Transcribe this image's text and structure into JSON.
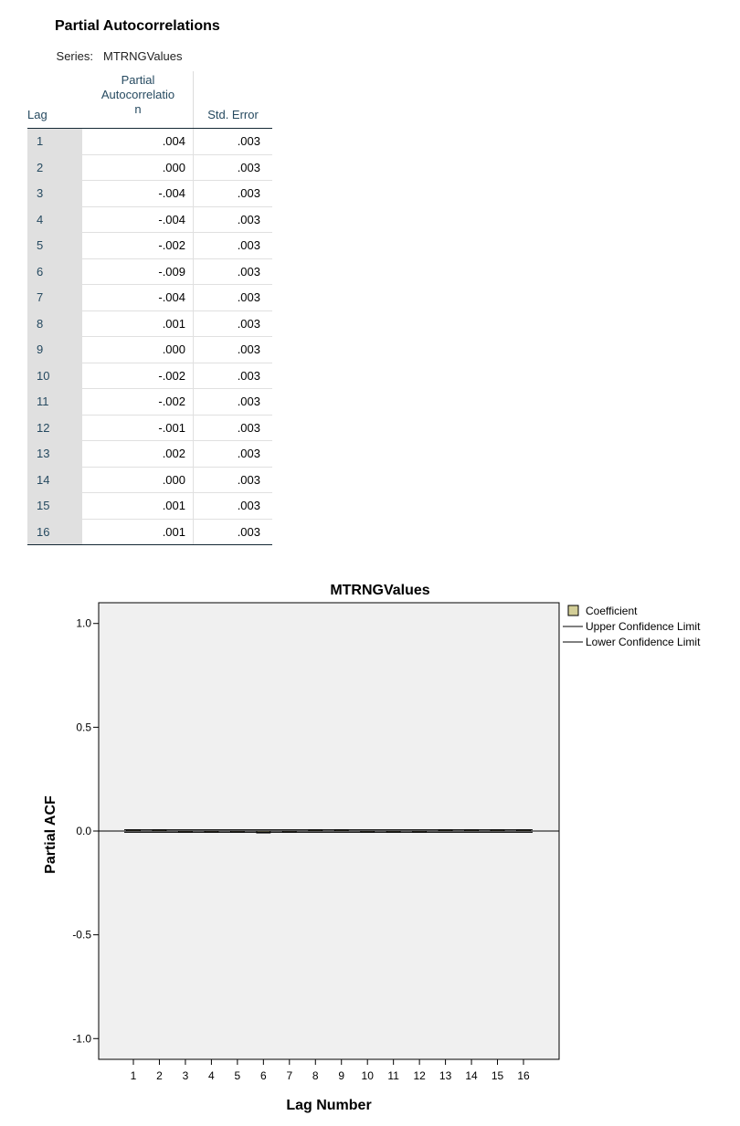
{
  "table": {
    "title": "Partial Autocorrelations",
    "series_label": "Series:",
    "series_value": "MTRNGValues",
    "headers": {
      "lag": "Lag",
      "pac_line1": "Partial",
      "pac_line2": "Autocorrelatio",
      "pac_line3": "n",
      "se": "Std. Error"
    },
    "rows": [
      {
        "lag": "1",
        "pac": ".004",
        "se": ".003"
      },
      {
        "lag": "2",
        "pac": ".000",
        "se": ".003"
      },
      {
        "lag": "3",
        "pac": "-.004",
        "se": ".003"
      },
      {
        "lag": "4",
        "pac": "-.004",
        "se": ".003"
      },
      {
        "lag": "5",
        "pac": "-.002",
        "se": ".003"
      },
      {
        "lag": "6",
        "pac": "-.009",
        "se": ".003"
      },
      {
        "lag": "7",
        "pac": "-.004",
        "se": ".003"
      },
      {
        "lag": "8",
        "pac": ".001",
        "se": ".003"
      },
      {
        "lag": "9",
        "pac": ".000",
        "se": ".003"
      },
      {
        "lag": "10",
        "pac": "-.002",
        "se": ".003"
      },
      {
        "lag": "11",
        "pac": "-.002",
        "se": ".003"
      },
      {
        "lag": "12",
        "pac": "-.001",
        "se": ".003"
      },
      {
        "lag": "13",
        "pac": ".002",
        "se": ".003"
      },
      {
        "lag": "14",
        "pac": ".000",
        "se": ".003"
      },
      {
        "lag": "15",
        "pac": ".001",
        "se": ".003"
      },
      {
        "lag": "16",
        "pac": ".001",
        "se": ".003"
      }
    ]
  },
  "chart_data": {
    "type": "bar",
    "title": "MTRNGValues",
    "xlabel": "Lag Number",
    "ylabel": "Partial ACF",
    "categories": [
      "1",
      "2",
      "3",
      "4",
      "5",
      "6",
      "7",
      "8",
      "9",
      "10",
      "11",
      "12",
      "13",
      "14",
      "15",
      "16"
    ],
    "series": [
      {
        "name": "Coefficient",
        "values": [
          0.004,
          0.0,
          -0.004,
          -0.004,
          -0.002,
          -0.009,
          -0.004,
          0.001,
          0.0,
          -0.002,
          -0.002,
          -0.001,
          0.002,
          0.0,
          0.001,
          0.001
        ]
      }
    ],
    "upper_confidence_limit": 0.006,
    "lower_confidence_limit": -0.006,
    "ylim": [
      -1.1,
      1.1
    ],
    "yticks": [
      "1.0",
      "0.5",
      "0.0",
      "-0.5",
      "-1.0"
    ],
    "ytick_values": [
      1.0,
      0.5,
      0.0,
      -0.5,
      -1.0
    ],
    "legend": {
      "placement": "top-right",
      "items": [
        "Coefficient",
        "Upper Confidence Limit",
        "Lower Confidence Limit"
      ]
    },
    "colors": {
      "plot_background": "#f0f0f0",
      "bar_fill": "#d3ce97",
      "bar_stroke": "#000000",
      "limit_line": "#000000"
    }
  }
}
